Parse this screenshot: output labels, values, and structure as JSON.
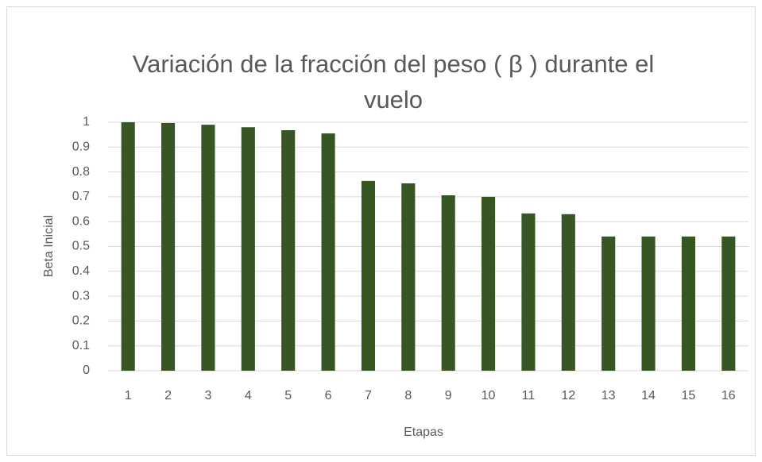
{
  "chart_data": {
    "type": "bar",
    "title": "Variación de la fracción del peso ( β ) durante el vuelo",
    "x_label": "Etapas",
    "y_label": "Beta Inicial",
    "categories": [
      "1",
      "2",
      "3",
      "4",
      "5",
      "6",
      "7",
      "8",
      "9",
      "10",
      "11",
      "12",
      "13",
      "14",
      "15",
      "16"
    ],
    "values": [
      1.0,
      0.997,
      0.99,
      0.98,
      0.968,
      0.955,
      0.764,
      0.754,
      0.706,
      0.7,
      0.633,
      0.63,
      0.54,
      0.54,
      0.54,
      0.54
    ],
    "color": "#375623",
    "ylim": [
      0,
      1
    ],
    "yticks": [
      0,
      0.1,
      0.2,
      0.3,
      0.4,
      0.5,
      0.6,
      0.7,
      0.8,
      0.9,
      1
    ],
    "grid": true
  }
}
